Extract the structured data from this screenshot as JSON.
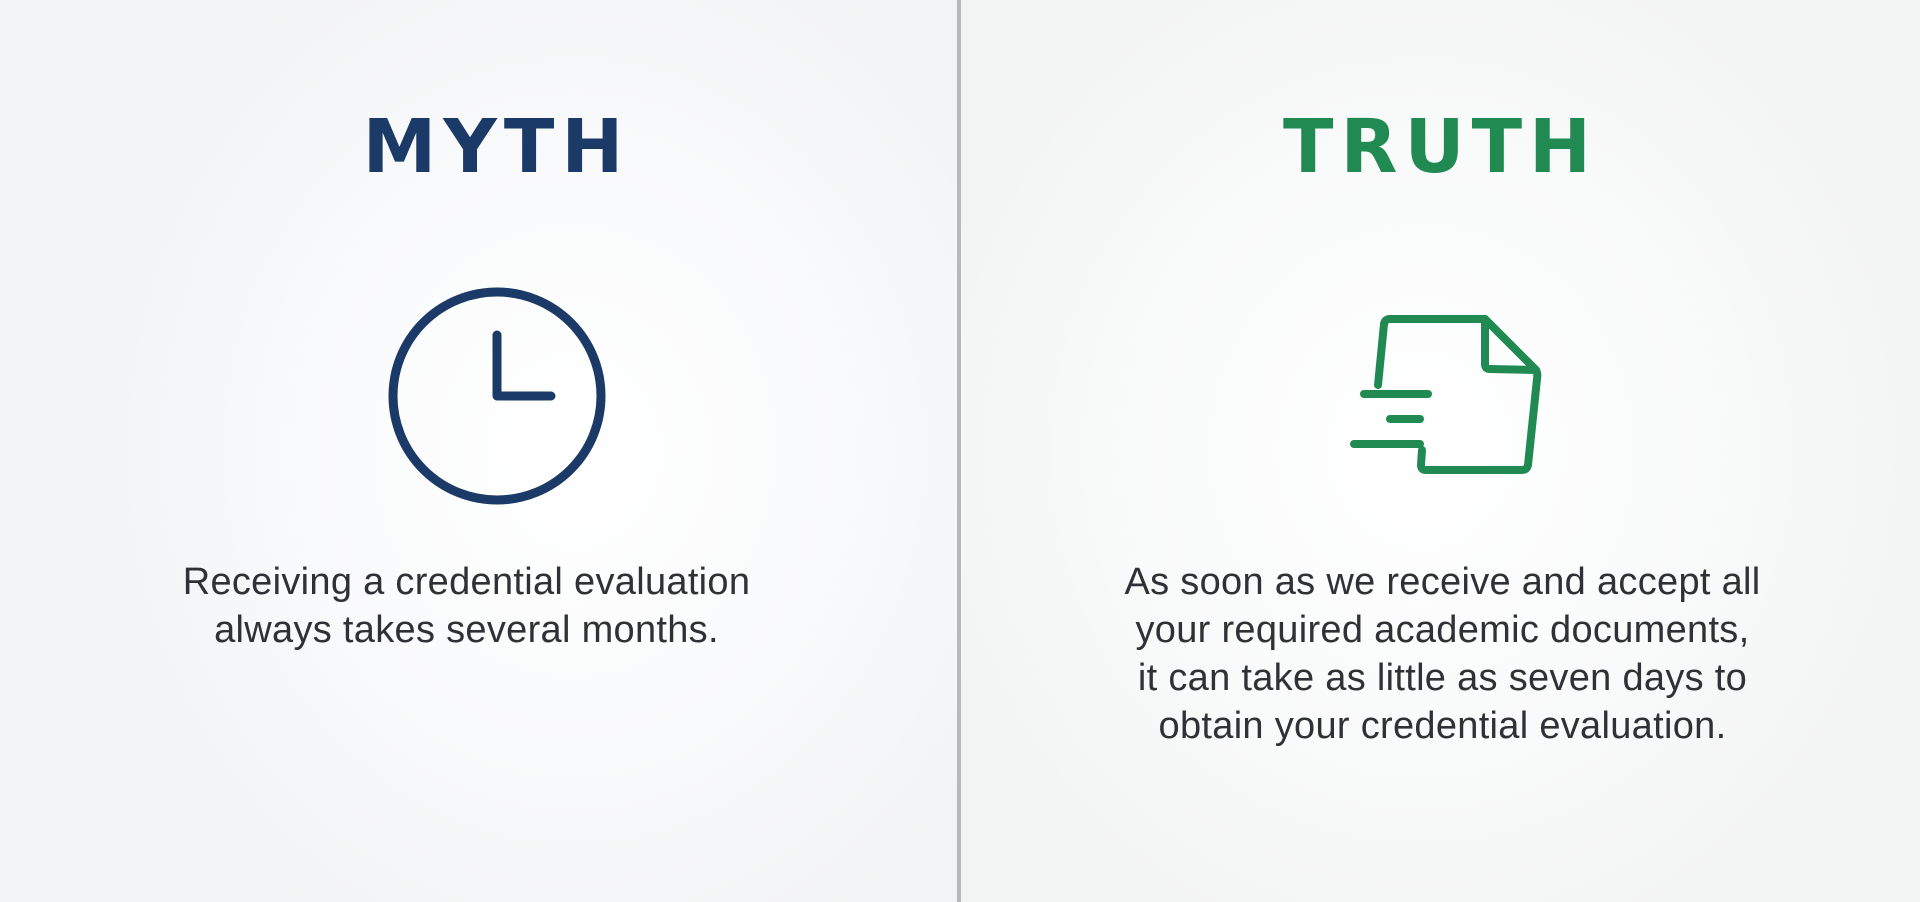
{
  "myth": {
    "heading": "MYTH",
    "icon": "clock-icon",
    "color": "#1b3a67",
    "text_lines": [
      "Receiving a credential evaluation",
      "always takes several months."
    ]
  },
  "truth": {
    "heading": "TRUTH",
    "icon": "document-fast-icon",
    "color": "#218a52",
    "text_lines": [
      "As soon as we receive and accept all",
      "your required academic documents,",
      "it can take as little as seven days to",
      "obtain your credential evaluation."
    ]
  },
  "colors": {
    "divider": "#b8b9ba",
    "body_text": "#2e3136"
  }
}
